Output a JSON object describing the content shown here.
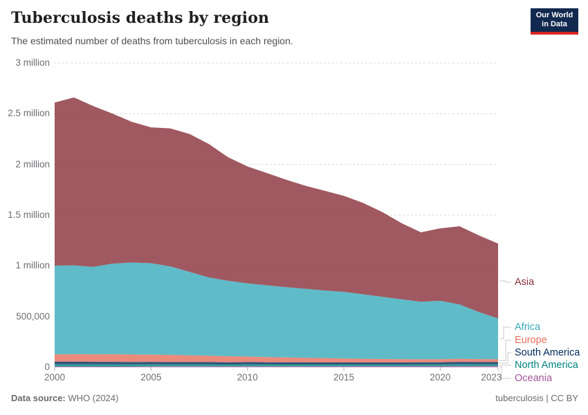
{
  "header": {
    "title": "Tuberculosis deaths by region",
    "subtitle": "The estimated number of deaths from tuberculosis in each region.",
    "logo": {
      "line1": "Our World",
      "line2": "in Data",
      "bg": "#12294f",
      "stripe": "#d72623"
    }
  },
  "footer": {
    "datasource_label": "Data source:",
    "datasource_value": "WHO (2024)",
    "license": "tuberculosis | CC BY"
  },
  "chart_data": {
    "type": "area",
    "stacked": true,
    "title": "Tuberculosis deaths by region",
    "xlabel": "",
    "ylabel": "",
    "grid": true,
    "legend_position": "right",
    "ylim": [
      0,
      3000000
    ],
    "x": [
      2000,
      2001,
      2002,
      2003,
      2004,
      2005,
      2006,
      2007,
      2008,
      2009,
      2010,
      2011,
      2012,
      2013,
      2014,
      2015,
      2016,
      2017,
      2018,
      2019,
      2020,
      2021,
      2022,
      2023
    ],
    "xticks": [
      {
        "value": 2000,
        "label": "2000"
      },
      {
        "value": 2005,
        "label": "2005"
      },
      {
        "value": 2010,
        "label": "2010"
      },
      {
        "value": 2015,
        "label": "2015"
      },
      {
        "value": 2020,
        "label": "2020"
      },
      {
        "value": 2023,
        "label": "2023"
      }
    ],
    "yticks": [
      {
        "value": 0,
        "label": "0"
      },
      {
        "value": 500000,
        "label": "500,000"
      },
      {
        "value": 1000000,
        "label": "1 million"
      },
      {
        "value": 1500000,
        "label": "1.5 million"
      },
      {
        "value": 2000000,
        "label": "2 million"
      },
      {
        "value": 2500000,
        "label": "2.5 million"
      },
      {
        "value": 3000000,
        "label": "3 million"
      }
    ],
    "series": [
      {
        "name": "Oceania",
        "color": "#A2559C",
        "values": [
          7000,
          7000,
          7000,
          7000,
          7000,
          8000,
          8000,
          8000,
          8000,
          8000,
          9000,
          9000,
          9000,
          9000,
          9000,
          9000,
          10000,
          10000,
          10000,
          10000,
          10000,
          11000,
          11000,
          11000
        ]
      },
      {
        "name": "North America",
        "color": "#00847E",
        "values": [
          23000,
          23000,
          22000,
          22000,
          21000,
          21000,
          20000,
          20000,
          20000,
          19000,
          19000,
          19000,
          18000,
          18000,
          18000,
          18000,
          17000,
          17000,
          17000,
          18000,
          18000,
          19000,
          19000,
          19000
        ]
      },
      {
        "name": "South America",
        "color": "#00295B",
        "values": [
          26000,
          26000,
          25000,
          25000,
          24000,
          24000,
          24000,
          23000,
          23000,
          23000,
          23000,
          22000,
          22000,
          22000,
          21000,
          21000,
          21000,
          21000,
          21000,
          21000,
          22000,
          24000,
          23000,
          22000
        ]
      },
      {
        "name": "Europe",
        "color": "#E56E5A",
        "values": [
          72000,
          73000,
          74000,
          75000,
          74000,
          72000,
          70000,
          67000,
          63000,
          59000,
          55000,
          51000,
          48000,
          45000,
          42000,
          39000,
          36000,
          34000,
          32000,
          30000,
          29000,
          29000,
          28000,
          27000
        ]
      },
      {
        "name": "Africa",
        "color": "#38AABA",
        "values": [
          874000,
          876000,
          862000,
          893000,
          907000,
          901000,
          873000,
          822000,
          772000,
          743000,
          722000,
          707000,
          693000,
          680000,
          667000,
          656000,
          635000,
          613000,
          590000,
          567000,
          576000,
          537000,
          464000,
          404000
        ]
      },
      {
        "name": "Asia",
        "color": "#883039",
        "values": [
          1608000,
          1655000,
          1585000,
          1478000,
          1387000,
          1339000,
          1360000,
          1360000,
          1314000,
          1218000,
          1152000,
          1107000,
          1060000,
          1016000,
          983000,
          947000,
          901000,
          835000,
          750000,
          684000,
          715000,
          770000,
          755000,
          737000
        ]
      }
    ]
  }
}
